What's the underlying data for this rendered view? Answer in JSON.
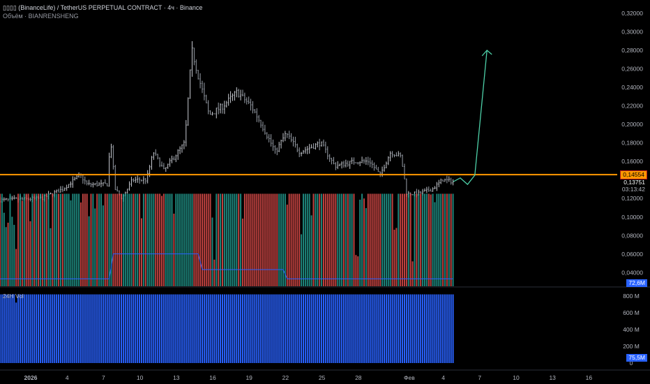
{
  "header": {
    "title": "▯▯▯▯ (BinanceLife) / TetherUS PERPETUAL CONTRACT · 4ч · Binance",
    "subtitle": "Объём · BIANRENSHENG"
  },
  "price_axis": [
    "0,32000",
    "0,30000",
    "0,28000",
    "0,26000",
    "0,24000",
    "0,22000",
    "0,20000",
    "0,18000",
    "0,16000",
    "0,12000",
    "0,10000",
    "0,08000",
    "0,06000",
    "0,04000"
  ],
  "current": {
    "level": "0,14554",
    "price": "0,13751",
    "countdown": "03:13:42"
  },
  "volume": {
    "value": "72,6M"
  },
  "vol24": {
    "label": "24H Vol",
    "ticks": [
      "800 M",
      "600 M",
      "400 M",
      "200 M",
      "0"
    ],
    "value": "75,5M"
  },
  "time_axis": [
    {
      "t": "2026",
      "d": 1
    },
    {
      "t": "4",
      "d": 4
    },
    {
      "t": "7",
      "d": 7
    },
    {
      "t": "10",
      "d": 10
    },
    {
      "t": "13",
      "d": 13
    },
    {
      "t": "16",
      "d": 16
    },
    {
      "t": "19",
      "d": 19
    },
    {
      "t": "22",
      "d": 22
    },
    {
      "t": "25",
      "d": 25
    },
    {
      "t": "28",
      "d": 28
    },
    {
      "t": "Фев",
      "d": 32.2
    },
    {
      "t": "4",
      "d": 35
    },
    {
      "t": "7",
      "d": 38
    },
    {
      "t": "10",
      "d": 41
    },
    {
      "t": "13",
      "d": 44
    },
    {
      "t": "16",
      "d": 47
    }
  ],
  "colors": {
    "up": "#26a69a",
    "down": "#ef5350",
    "level": "#ff9800",
    "vol24": "#2962ff"
  },
  "chart_data": {
    "type": "candlestick",
    "interval": "4h",
    "level": 0.14554,
    "last": 0.13751,
    "path": [
      [
        -1.53,
        0.118
      ],
      [
        1.92,
        0.12
      ],
      [
        3.64,
        0.13
      ],
      [
        5.08,
        0.145
      ],
      [
        5.66,
        0.135
      ],
      [
        7.38,
        0.135
      ],
      [
        7.55,
        0.19
      ],
      [
        7.95,
        0.13
      ],
      [
        8.53,
        0.12
      ],
      [
        9.39,
        0.14
      ],
      [
        10.54,
        0.14
      ],
      [
        11.11,
        0.17
      ],
      [
        11.98,
        0.15
      ],
      [
        12.55,
        0.16
      ],
      [
        13.7,
        0.18
      ],
      [
        14.28,
        0.28
      ],
      [
        14.85,
        0.25
      ],
      [
        15.71,
        0.21
      ],
      [
        16.86,
        0.22
      ],
      [
        18.01,
        0.235
      ],
      [
        19.16,
        0.22
      ],
      [
        20.02,
        0.2
      ],
      [
        21.17,
        0.17
      ],
      [
        22.03,
        0.19
      ],
      [
        23.18,
        0.17
      ],
      [
        24.9,
        0.18
      ],
      [
        26.06,
        0.155
      ],
      [
        27.78,
        0.16
      ],
      [
        28.93,
        0.16
      ],
      [
        29.79,
        0.145
      ],
      [
        30.66,
        0.17
      ],
      [
        31.52,
        0.165
      ],
      [
        31.98,
        0.125
      ],
      [
        32.95,
        0.125
      ],
      [
        34.1,
        0.13
      ],
      [
        34.97,
        0.14
      ],
      [
        35.83,
        0.138
      ]
    ],
    "projection": [
      [
        35.83,
        0.138
      ],
      [
        36.4,
        0.142
      ],
      [
        37,
        0.135
      ],
      [
        37.6,
        0.145
      ],
      [
        38.6,
        0.28
      ]
    ]
  }
}
